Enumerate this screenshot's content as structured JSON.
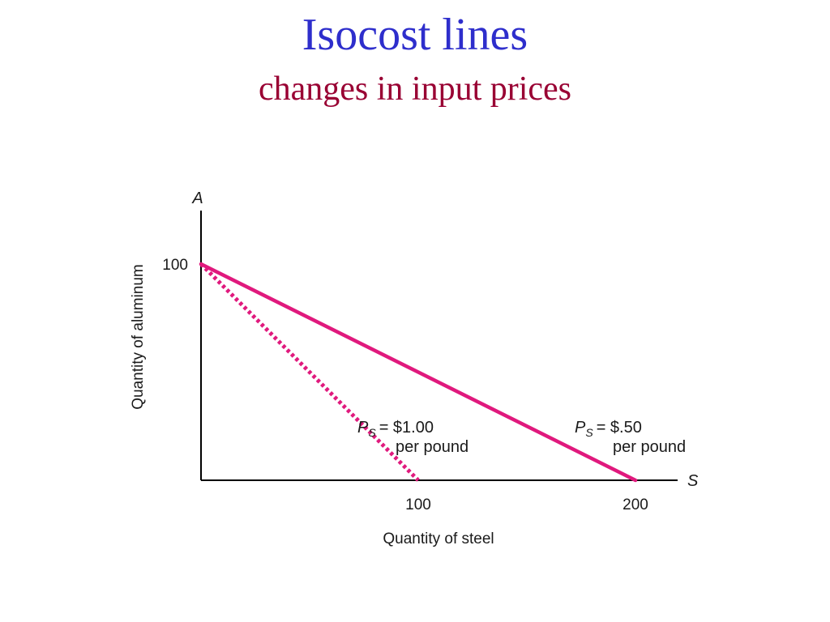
{
  "slide": {
    "title": "Isocost lines",
    "subtitle": "changes in input prices"
  },
  "chart_data": {
    "type": "line",
    "title": "",
    "xlabel": "Quantity of steel",
    "ylabel": "Quantity of aluminum",
    "x_axis_symbol": "S",
    "y_axis_symbol": "A",
    "xlim": [
      0,
      220
    ],
    "ylim": [
      0,
      125
    ],
    "x_ticks": [
      100,
      200
    ],
    "y_ticks": [
      100
    ],
    "grid": false,
    "series": [
      {
        "name": "P_S = $1.00 per pound",
        "style": "dotted",
        "color": "#e0197d",
        "points": [
          [
            0,
            100
          ],
          [
            100,
            0
          ]
        ],
        "label_symbol": "P",
        "label_subscript": "S",
        "label_value": "= $1.00",
        "label_unit": "per pound"
      },
      {
        "name": "P_S = $.50 per pound",
        "style": "solid",
        "color": "#e0197d",
        "points": [
          [
            0,
            100
          ],
          [
            200,
            0
          ]
        ],
        "label_symbol": "P",
        "label_subscript": "S",
        "label_value": "= $.50",
        "label_unit": "per pound"
      }
    ]
  }
}
